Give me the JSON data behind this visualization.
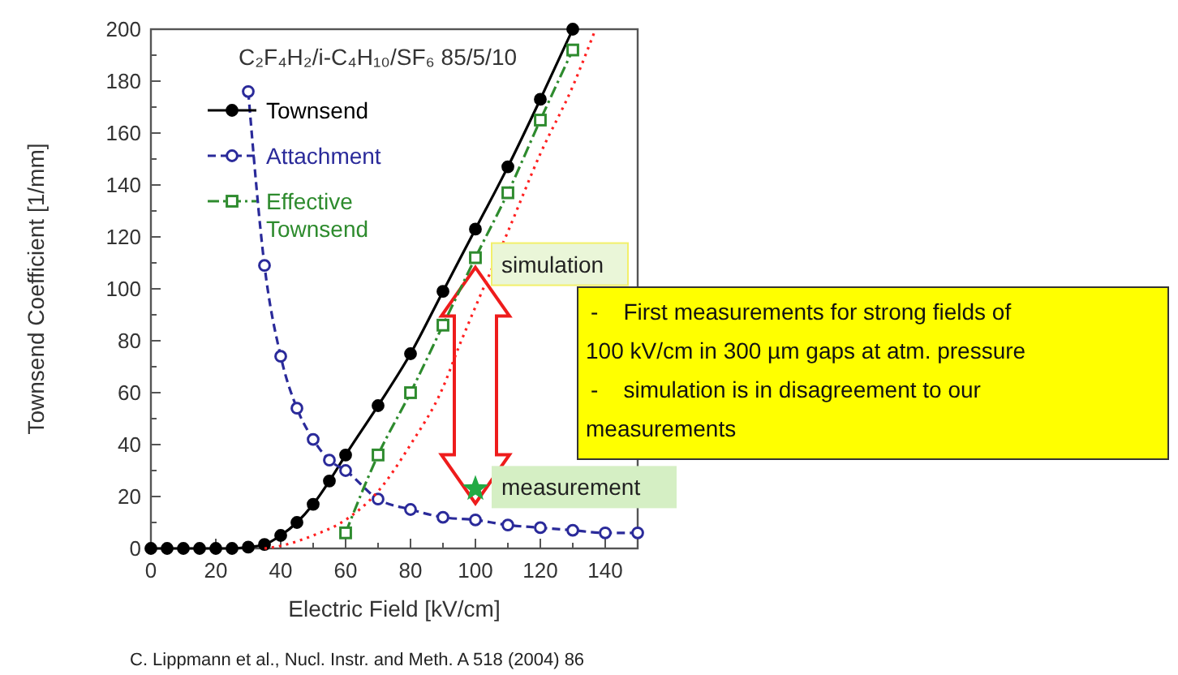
{
  "chart_data": {
    "type": "line",
    "title": "C₂F₄H₂/i-C₄H₁₀/SF₆ 85/5/10",
    "xlabel": "Electric Field [kV/cm]",
    "ylabel": "Townsend Coefficient [1/mm]",
    "xlim": [
      0,
      150
    ],
    "ylim": [
      0,
      200
    ],
    "xticks": [
      0,
      {
        "value": 10,
        "label": null
      },
      20,
      {
        "value": 30,
        "label": null
      },
      40,
      {
        "value": 50,
        "label": null
      },
      60,
      {
        "value": 70,
        "label": null
      },
      80,
      {
        "value": 90,
        "label": null
      },
      100,
      {
        "value": 110,
        "label": null
      },
      120,
      {
        "value": 130,
        "label": null
      },
      140,
      {
        "value": 150,
        "label": null
      }
    ],
    "yticks": [
      0,
      {
        "value": 10,
        "label": null
      },
      20,
      {
        "value": 30,
        "label": null
      },
      40,
      {
        "value": 50,
        "label": null
      },
      60,
      {
        "value": 70,
        "label": null
      },
      80,
      {
        "value": 90,
        "label": null
      },
      100,
      {
        "value": 110,
        "label": null
      },
      120,
      {
        "value": 130,
        "label": null
      },
      140,
      {
        "value": 150,
        "label": null
      },
      160,
      {
        "value": 170,
        "label": null
      },
      180,
      {
        "value": 190,
        "label": null
      },
      200
    ],
    "grid": false,
    "legend": "top left",
    "series": [
      {
        "name": "Townsend",
        "color": "#000000",
        "marker": "circle",
        "line_style": "solid",
        "x": [
          0,
          5,
          10,
          15,
          20,
          25,
          30,
          35,
          40,
          45,
          50,
          55,
          60,
          70,
          80,
          90,
          100,
          110,
          120,
          130
        ],
        "values": [
          0,
          0,
          0,
          0,
          0,
          0,
          0.5,
          1.5,
          5,
          10,
          17,
          26,
          36,
          55,
          75,
          99,
          123,
          147,
          173,
          200
        ]
      },
      {
        "name": "Attachment",
        "color": "#2a2a9a",
        "marker": "circle",
        "line_style": "dashed",
        "x": [
          30,
          35,
          40,
          45,
          50,
          55,
          60,
          70,
          80,
          90,
          100,
          110,
          120,
          130,
          140,
          150
        ],
        "values": [
          176,
          109,
          74,
          54,
          42,
          34,
          30,
          19,
          15,
          12,
          11,
          9,
          8,
          7,
          6,
          6
        ]
      },
      {
        "name": "Effective Townsend",
        "color": "#2e8b2e",
        "marker": "square",
        "line_style": "dashdot",
        "x": [
          60,
          70,
          80,
          90,
          100,
          110,
          120,
          130
        ],
        "values": [
          6,
          36,
          60,
          86,
          112,
          137,
          165,
          192
        ]
      },
      {
        "color": "#ff2020",
        "marker": "none",
        "line_style": "dotted",
        "x": [
          35,
          40,
          50,
          60,
          70,
          80,
          90,
          95,
          100,
          110,
          120,
          130,
          137
        ],
        "values": [
          0,
          1,
          5,
          11,
          22,
          40,
          62,
          78,
          93,
          122,
          152,
          178,
          200
        ]
      },
      {
        "type": "scatter",
        "color": "#22aa44",
        "marker": "star",
        "x": [
          100
        ],
        "values": [
          23
        ]
      }
    ],
    "annotations": [
      "-    First measurements for strong fields of 100 kV/cm in 300 µm gaps at atm. pressure",
      "-    simulation is in disagreement to our measurements",
      {
        "text": "simulation",
        "x": 100,
        "y": 112
      },
      {
        "text": "measurement",
        "x": 100,
        "y": 23
      },
      "C. Lippmann et al., Nucl. Instr. and Meth. A 518 (2004) 86"
    ]
  }
}
